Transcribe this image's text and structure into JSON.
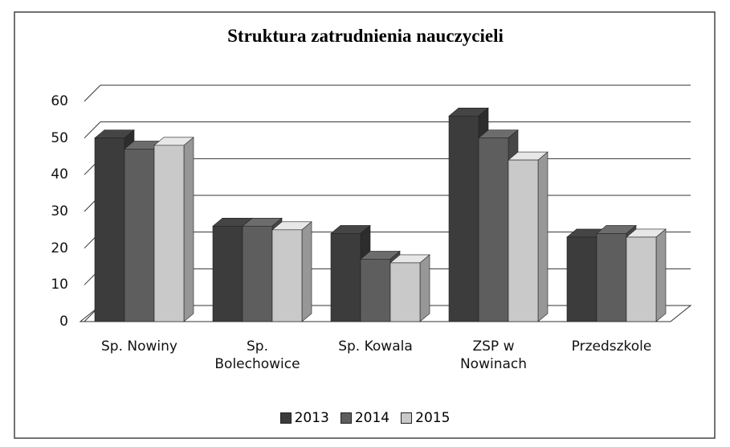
{
  "chart_data": {
    "type": "bar3d",
    "title": "Struktura zatrudnienia nauczycieli",
    "categories": [
      "Sp. Nowiny",
      "Sp. Bolechowice",
      "Sp. Kowala",
      "ZSP w Nowinach",
      "Przedszkole"
    ],
    "series": [
      {
        "name": "2013",
        "color": "#3c3c3c",
        "values": [
          50,
          26,
          24,
          56,
          23
        ]
      },
      {
        "name": "2014",
        "color": "#5e5e5e",
        "values": [
          47,
          26,
          17,
          50,
          24
        ]
      },
      {
        "name": "2015",
        "color": "#c9c9c9",
        "values": [
          48,
          25,
          16,
          44,
          23
        ]
      }
    ],
    "ylim": [
      0,
      60
    ],
    "yticks": [
      0,
      10,
      20,
      30,
      40,
      50,
      60
    ],
    "grid": true,
    "legend": "bottom"
  }
}
